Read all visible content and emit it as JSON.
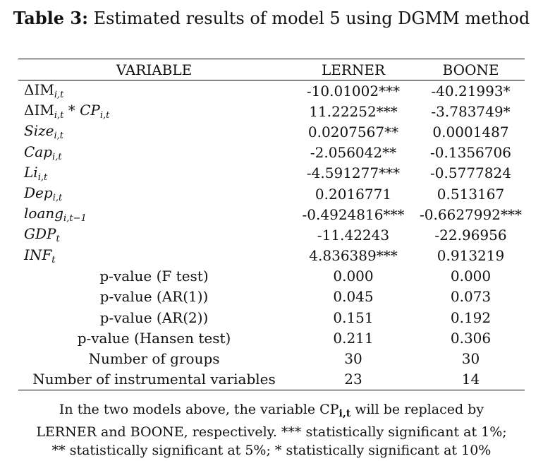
{
  "title": {
    "bold": "Table 3:",
    "text": " Estimated results of model 5 using DGMM method"
  },
  "table": {
    "headers": [
      "VARIABLE",
      "LERNER",
      "BOONE"
    ],
    "rows": [
      {
        "pre": "ΔIM",
        "sub": "i,t",
        "mid": "",
        "ital": "",
        "sub2": "",
        "lerner": "-10.01002***",
        "boone": "-40.21993*"
      },
      {
        "pre": "ΔIM",
        "sub": "i,t",
        "mid": " * ",
        "ital": "CP",
        "sub2": "i,t",
        "lerner": "11.22252***",
        "boone": "-3.783749*"
      },
      {
        "pre": "",
        "ital0": "Size",
        "sub": "i,t",
        "lerner": "0.0207567**",
        "boone": "0.0001487"
      },
      {
        "pre": "",
        "ital0": "Cap",
        "sub": "i,t",
        "lerner": "-2.056042**",
        "boone": "-0.1356706"
      },
      {
        "pre": "",
        "ital0": "Li",
        "sub": "i,t",
        "lerner": "-4.591277***",
        "boone": "-0.5777824"
      },
      {
        "pre": "",
        "ital0": "Dep",
        "sub": "i,t",
        "lerner": "0.2016771",
        "boone": "0.513167"
      },
      {
        "pre": "",
        "ital0": "loang",
        "sub": "i,t−1",
        "lerner": "-0.4924816***",
        "boone": "-0.6627992***"
      },
      {
        "pre": "",
        "ital0": "GDP",
        "sub": "t",
        "lerner": "-11.42243",
        "boone": "-22.96956"
      },
      {
        "pre": "",
        "ital0": "INF",
        "sub": "t",
        "lerner": "4.836389***",
        "boone": "0.913219"
      }
    ],
    "stats": [
      {
        "label": "p-value (F test)",
        "lerner": "0.000",
        "boone": "0.000"
      },
      {
        "label": "p-value (AR(1))",
        "lerner": "0.045",
        "boone": "0.073"
      },
      {
        "label": "p-value (AR(2))",
        "lerner": "0.151",
        "boone": "0.192"
      },
      {
        "label": "p-value (Hansen test)",
        "lerner": "0.211",
        "boone": "0.306"
      },
      {
        "label": "Number of groups",
        "lerner": "30",
        "boone": "30"
      },
      {
        "label": "Number of instrumental variables",
        "lerner": "23",
        "boone": "14"
      }
    ]
  },
  "note": {
    "part1": "In the two models above, the variable CP",
    "sub": "i,t",
    "part2": " will be replaced by LERNER and BOONE, respectively. *** statistically significant at 1%; ** statistically significant at 5%; * statistically significant at 10%"
  }
}
